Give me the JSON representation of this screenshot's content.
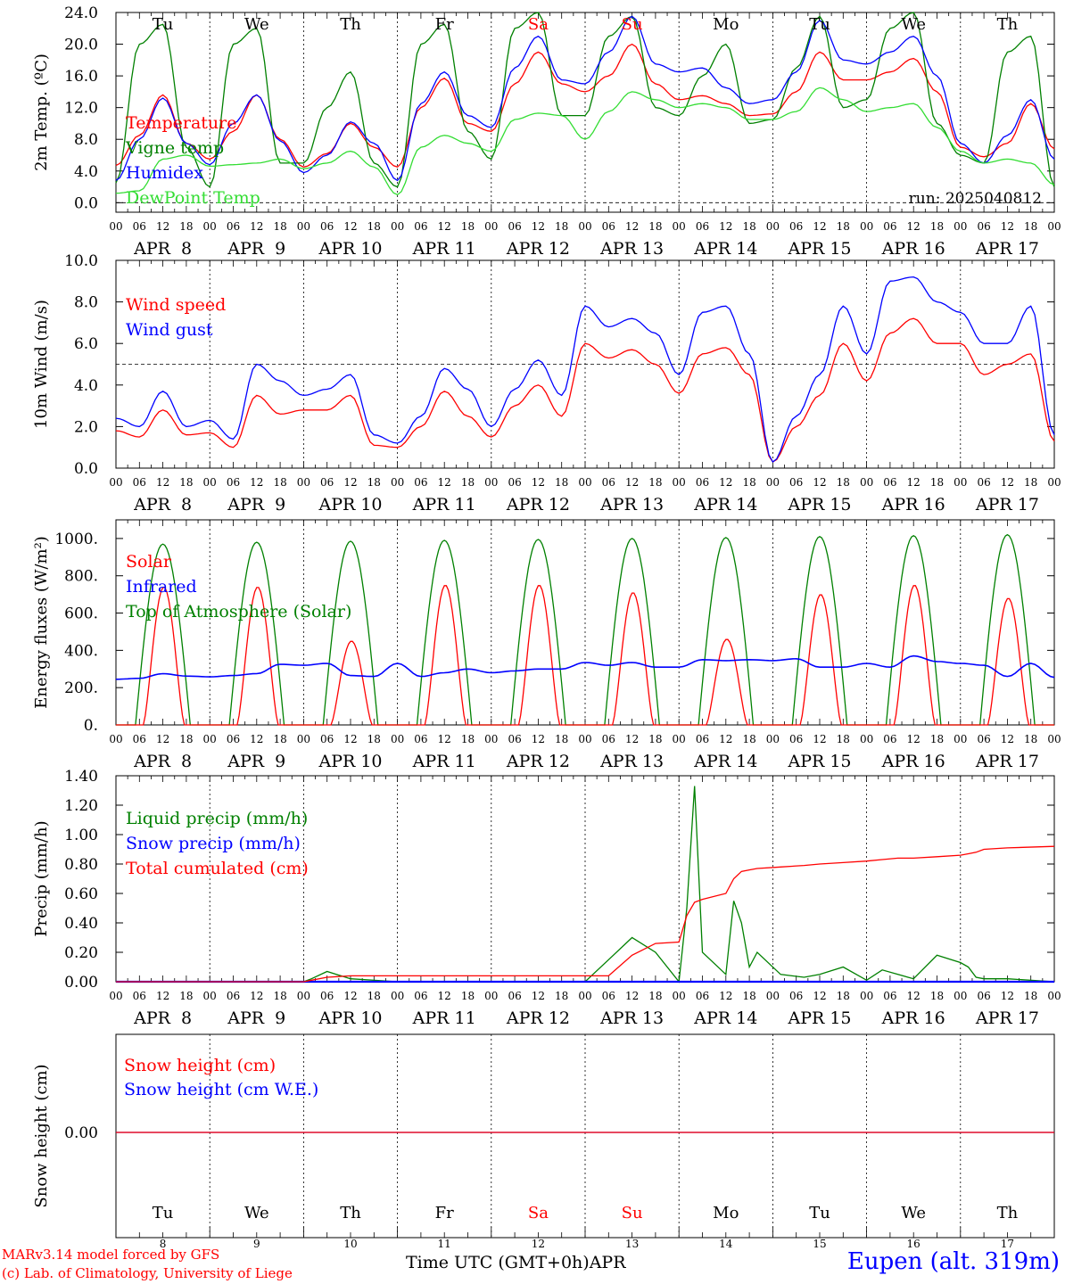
{
  "station": {
    "label": "Eupen (alt. 319m)"
  },
  "credits": {
    "line1": "MARv3.14 model forced by GFS",
    "line2": "(c) Lab. of Climatology, University of Liege"
  },
  "x_axis": {
    "label": "Time UTC (GMT+0h)",
    "month": "APR",
    "hour_ticks": [
      "00",
      "06",
      "12",
      "18"
    ],
    "day_labels": [
      "APR  8",
      "APR  9",
      "APR 10",
      "APR 11",
      "APR 12",
      "APR 13",
      "APR 14",
      "APR 15",
      "APR 16",
      "APR 17"
    ],
    "day_numbers": [
      "8",
      "9",
      "10",
      "11",
      "12",
      "13",
      "14",
      "15",
      "16",
      "17"
    ],
    "weekdays": [
      "Tu",
      "We",
      "Th",
      "Fr",
      "Sa",
      "Su",
      "Mo",
      "Tu",
      "We",
      "Th"
    ],
    "weekday_colors": [
      "#000000",
      "#000000",
      "#000000",
      "#000000",
      "#ff0000",
      "#ff0000",
      "#000000",
      "#000000",
      "#000000",
      "#000000"
    ]
  },
  "colors": {
    "red": "#ff0000",
    "green": "#008000",
    "blue": "#0000ff",
    "lightgreen": "#33dd33"
  },
  "chart_data": [
    {
      "type": "line",
      "ylabel": "2m Temp. (ºC)",
      "ylim": [
        -1.2,
        24
      ],
      "yticks": [
        "0.0",
        "4.0",
        "8.0",
        "12.0",
        "16.0",
        "20.0",
        "24.0"
      ],
      "annotation": "run: 2025040812",
      "x_hours": [
        0,
        6,
        12,
        18,
        24,
        30,
        36,
        42,
        48,
        54,
        60,
        66,
        72,
        78,
        84,
        90,
        96,
        102,
        108,
        114,
        120,
        126,
        132,
        138,
        144,
        150,
        156,
        162,
        168,
        174,
        180,
        186,
        192,
        198,
        204,
        210,
        216,
        222,
        228,
        234,
        240
      ],
      "series": [
        {
          "name": "Temperature",
          "color": "#ff0000",
          "values": [
            4.7,
            8.5,
            13.6,
            7.5,
            5.5,
            9.0,
            13.6,
            8.0,
            4.5,
            6.2,
            10.0,
            7.0,
            4.5,
            12.0,
            15.7,
            10.0,
            9.0,
            15.0,
            19.0,
            15.0,
            14.0,
            16.0,
            20.0,
            15.0,
            13.0,
            13.5,
            12.5,
            11.0,
            11.2,
            14.0,
            19.0,
            15.5,
            15.5,
            16.5,
            18.2,
            14.0,
            7.0,
            5.8,
            7.5,
            12.5,
            6.8
          ]
        },
        {
          "name": "Vigne temp",
          "color": "#008000",
          "values": [
            2.5,
            20.0,
            22.5,
            7.0,
            2.0,
            20.0,
            22.0,
            5.0,
            5.0,
            12.0,
            16.5,
            5.0,
            2.0,
            20.0,
            22.5,
            9.0,
            5.5,
            22.0,
            24.0,
            11.0,
            11.0,
            21.0,
            23.5,
            12.0,
            11.0,
            16.0,
            20.0,
            10.0,
            10.5,
            17.0,
            23.5,
            12.0,
            13.0,
            22.0,
            24.0,
            10.0,
            6.0,
            5.0,
            19.0,
            21.0,
            2.0
          ]
        },
        {
          "name": "Humidex",
          "color": "#0000ff",
          "values": [
            2.8,
            8.0,
            13.2,
            7.5,
            4.8,
            10.0,
            13.6,
            7.8,
            3.8,
            6.0,
            10.2,
            7.5,
            2.8,
            12.5,
            16.5,
            11.0,
            9.5,
            17.0,
            21.0,
            15.5,
            15.0,
            19.0,
            23.5,
            17.5,
            16.5,
            17.0,
            14.5,
            12.5,
            13.0,
            16.5,
            23.0,
            18.0,
            17.5,
            19.0,
            21.0,
            16.0,
            7.5,
            5.0,
            8.5,
            13.0,
            5.5
          ]
        },
        {
          "name": "DewPoint Temp",
          "color": "#33dd33",
          "values": [
            1.2,
            1.5,
            5.5,
            6.0,
            4.6,
            4.8,
            5.0,
            5.5,
            4.3,
            5.0,
            6.5,
            4.5,
            1.0,
            7.0,
            8.5,
            7.5,
            6.5,
            10.5,
            11.3,
            11.0,
            8.0,
            11.5,
            14.0,
            13.0,
            12.0,
            12.5,
            12.0,
            10.5,
            10.5,
            11.5,
            14.5,
            13.0,
            11.5,
            12.0,
            12.5,
            9.5,
            6.5,
            5.0,
            5.5,
            5.0,
            2.3
          ]
        }
      ]
    },
    {
      "type": "line",
      "ylabel": "10m Wind (m/s)",
      "ylim": [
        0,
        10
      ],
      "yticks": [
        "0.0",
        "2.0",
        "4.0",
        "6.0",
        "8.0",
        "10.0"
      ],
      "x_hours": [
        0,
        6,
        12,
        18,
        24,
        30,
        36,
        42,
        48,
        54,
        60,
        66,
        72,
        78,
        84,
        90,
        96,
        102,
        108,
        114,
        120,
        126,
        132,
        138,
        144,
        150,
        156,
        162,
        168,
        174,
        180,
        186,
        192,
        198,
        204,
        210,
        216,
        222,
        228,
        234,
        240
      ],
      "series": [
        {
          "name": "Wind speed",
          "color": "#ff0000",
          "values": [
            1.8,
            1.5,
            2.8,
            1.6,
            1.7,
            1.0,
            3.5,
            2.6,
            2.8,
            2.8,
            3.5,
            1.1,
            1.0,
            2.0,
            3.7,
            2.5,
            1.5,
            3.0,
            4.0,
            2.5,
            6.0,
            5.3,
            5.7,
            5.0,
            3.6,
            5.5,
            5.8,
            4.5,
            0.3,
            2.0,
            3.5,
            6.0,
            4.2,
            6.5,
            7.2,
            6.0,
            6.0,
            4.5,
            5.0,
            5.5,
            1.3
          ]
        },
        {
          "name": "Wind gust",
          "color": "#0000ff",
          "values": [
            2.4,
            2.0,
            3.7,
            2.0,
            2.3,
            1.4,
            5.0,
            4.2,
            3.5,
            3.8,
            4.5,
            1.6,
            1.2,
            2.5,
            4.8,
            3.8,
            2.0,
            3.8,
            5.2,
            3.5,
            7.8,
            6.8,
            7.2,
            6.5,
            4.5,
            7.5,
            7.8,
            5.5,
            0.3,
            2.5,
            4.5,
            7.8,
            5.5,
            9.0,
            9.2,
            8.0,
            7.5,
            6.0,
            6.0,
            7.8,
            1.6
          ]
        }
      ]
    },
    {
      "type": "line",
      "ylabel": "Energy fluxes (W/m²)",
      "ylim": [
        0,
        1100
      ],
      "yticks": [
        "0.",
        "200.",
        "400.",
        "600.",
        "800.",
        "1000."
      ],
      "day_peaks": {
        "solar": [
          740,
          740,
          450,
          750,
          750,
          710,
          460,
          700,
          750,
          680
        ],
        "toa": [
          970,
          980,
          985,
          990,
          995,
          1000,
          1005,
          1010,
          1015,
          1020
        ]
      },
      "infrared_hours": [
        0,
        6,
        12,
        18,
        24,
        30,
        36,
        42,
        48,
        54,
        60,
        66,
        72,
        78,
        84,
        90,
        96,
        102,
        108,
        114,
        120,
        126,
        132,
        138,
        144,
        150,
        156,
        162,
        168,
        174,
        180,
        186,
        192,
        198,
        204,
        210,
        216,
        222,
        228,
        234,
        240
      ],
      "infrared_values": [
        245,
        250,
        275,
        262,
        258,
        265,
        275,
        325,
        320,
        330,
        265,
        260,
        330,
        260,
        280,
        300,
        280,
        290,
        300,
        300,
        335,
        320,
        335,
        310,
        310,
        350,
        345,
        350,
        345,
        355,
        310,
        310,
        330,
        310,
        370,
        340,
        330,
        320,
        260,
        330,
        255
      ],
      "series": [
        {
          "name": "Solar",
          "color": "#ff0000"
        },
        {
          "name": "Infrared",
          "color": "#0000ff"
        },
        {
          "name": "Top of Atmosphere (Solar)",
          "color": "#008000"
        }
      ]
    },
    {
      "type": "line",
      "ylabel": "Precip (mm/h)",
      "ylim": [
        0,
        1.4
      ],
      "yticks": [
        "0.00",
        "0.20",
        "0.40",
        "0.60",
        "0.80",
        "1.00",
        "1.20",
        "1.40"
      ],
      "x_hours": [
        0,
        48,
        50,
        54,
        60,
        72,
        120,
        126,
        132,
        138,
        144,
        146,
        148,
        150,
        156,
        158,
        160,
        162,
        164,
        170,
        176,
        180,
        186,
        192,
        196,
        200,
        204,
        210,
        216,
        218,
        220,
        222,
        228,
        240
      ],
      "series": [
        {
          "name": "Liquid precip (mm/h)",
          "color": "#008000",
          "values": [
            0,
            0,
            0.02,
            0.07,
            0.02,
            0,
            0,
            0.15,
            0.3,
            0.2,
            0,
            0.5,
            1.33,
            0.2,
            0.05,
            0.55,
            0.4,
            0.1,
            0.2,
            0.05,
            0.03,
            0.05,
            0.1,
            0.01,
            0.08,
            0.05,
            0.02,
            0.18,
            0.13,
            0.1,
            0.03,
            0.02,
            0.02,
            0
          ]
        },
        {
          "name": "Snow precip (mm/h)",
          "color": "#0000ff",
          "values": [
            0,
            0,
            0,
            0,
            0,
            0,
            0,
            0,
            0,
            0,
            0,
            0,
            0,
            0,
            0,
            0,
            0,
            0,
            0,
            0,
            0,
            0,
            0,
            0,
            0,
            0,
            0,
            0,
            0,
            0,
            0,
            0,
            0,
            0
          ]
        },
        {
          "name": "Total cumulated (cm)",
          "color": "#ff0000",
          "values": [
            0,
            0,
            0.01,
            0.03,
            0.04,
            0.04,
            0.04,
            0.04,
            0.18,
            0.26,
            0.27,
            0.45,
            0.54,
            0.56,
            0.6,
            0.7,
            0.75,
            0.76,
            0.77,
            0.78,
            0.79,
            0.8,
            0.81,
            0.82,
            0.83,
            0.84,
            0.84,
            0.85,
            0.86,
            0.87,
            0.88,
            0.9,
            0.91,
            0.92
          ]
        }
      ]
    },
    {
      "type": "line",
      "ylabel": "Snow height (cm)",
      "yticks": [
        "0.00"
      ],
      "series": [
        {
          "name": "Snow height (cm)",
          "color": "#ff0000",
          "values": [
            0,
            0
          ]
        },
        {
          "name": "Snow height (cm W.E.)",
          "color": "#0000ff",
          "values": [
            0,
            0
          ]
        }
      ]
    }
  ]
}
